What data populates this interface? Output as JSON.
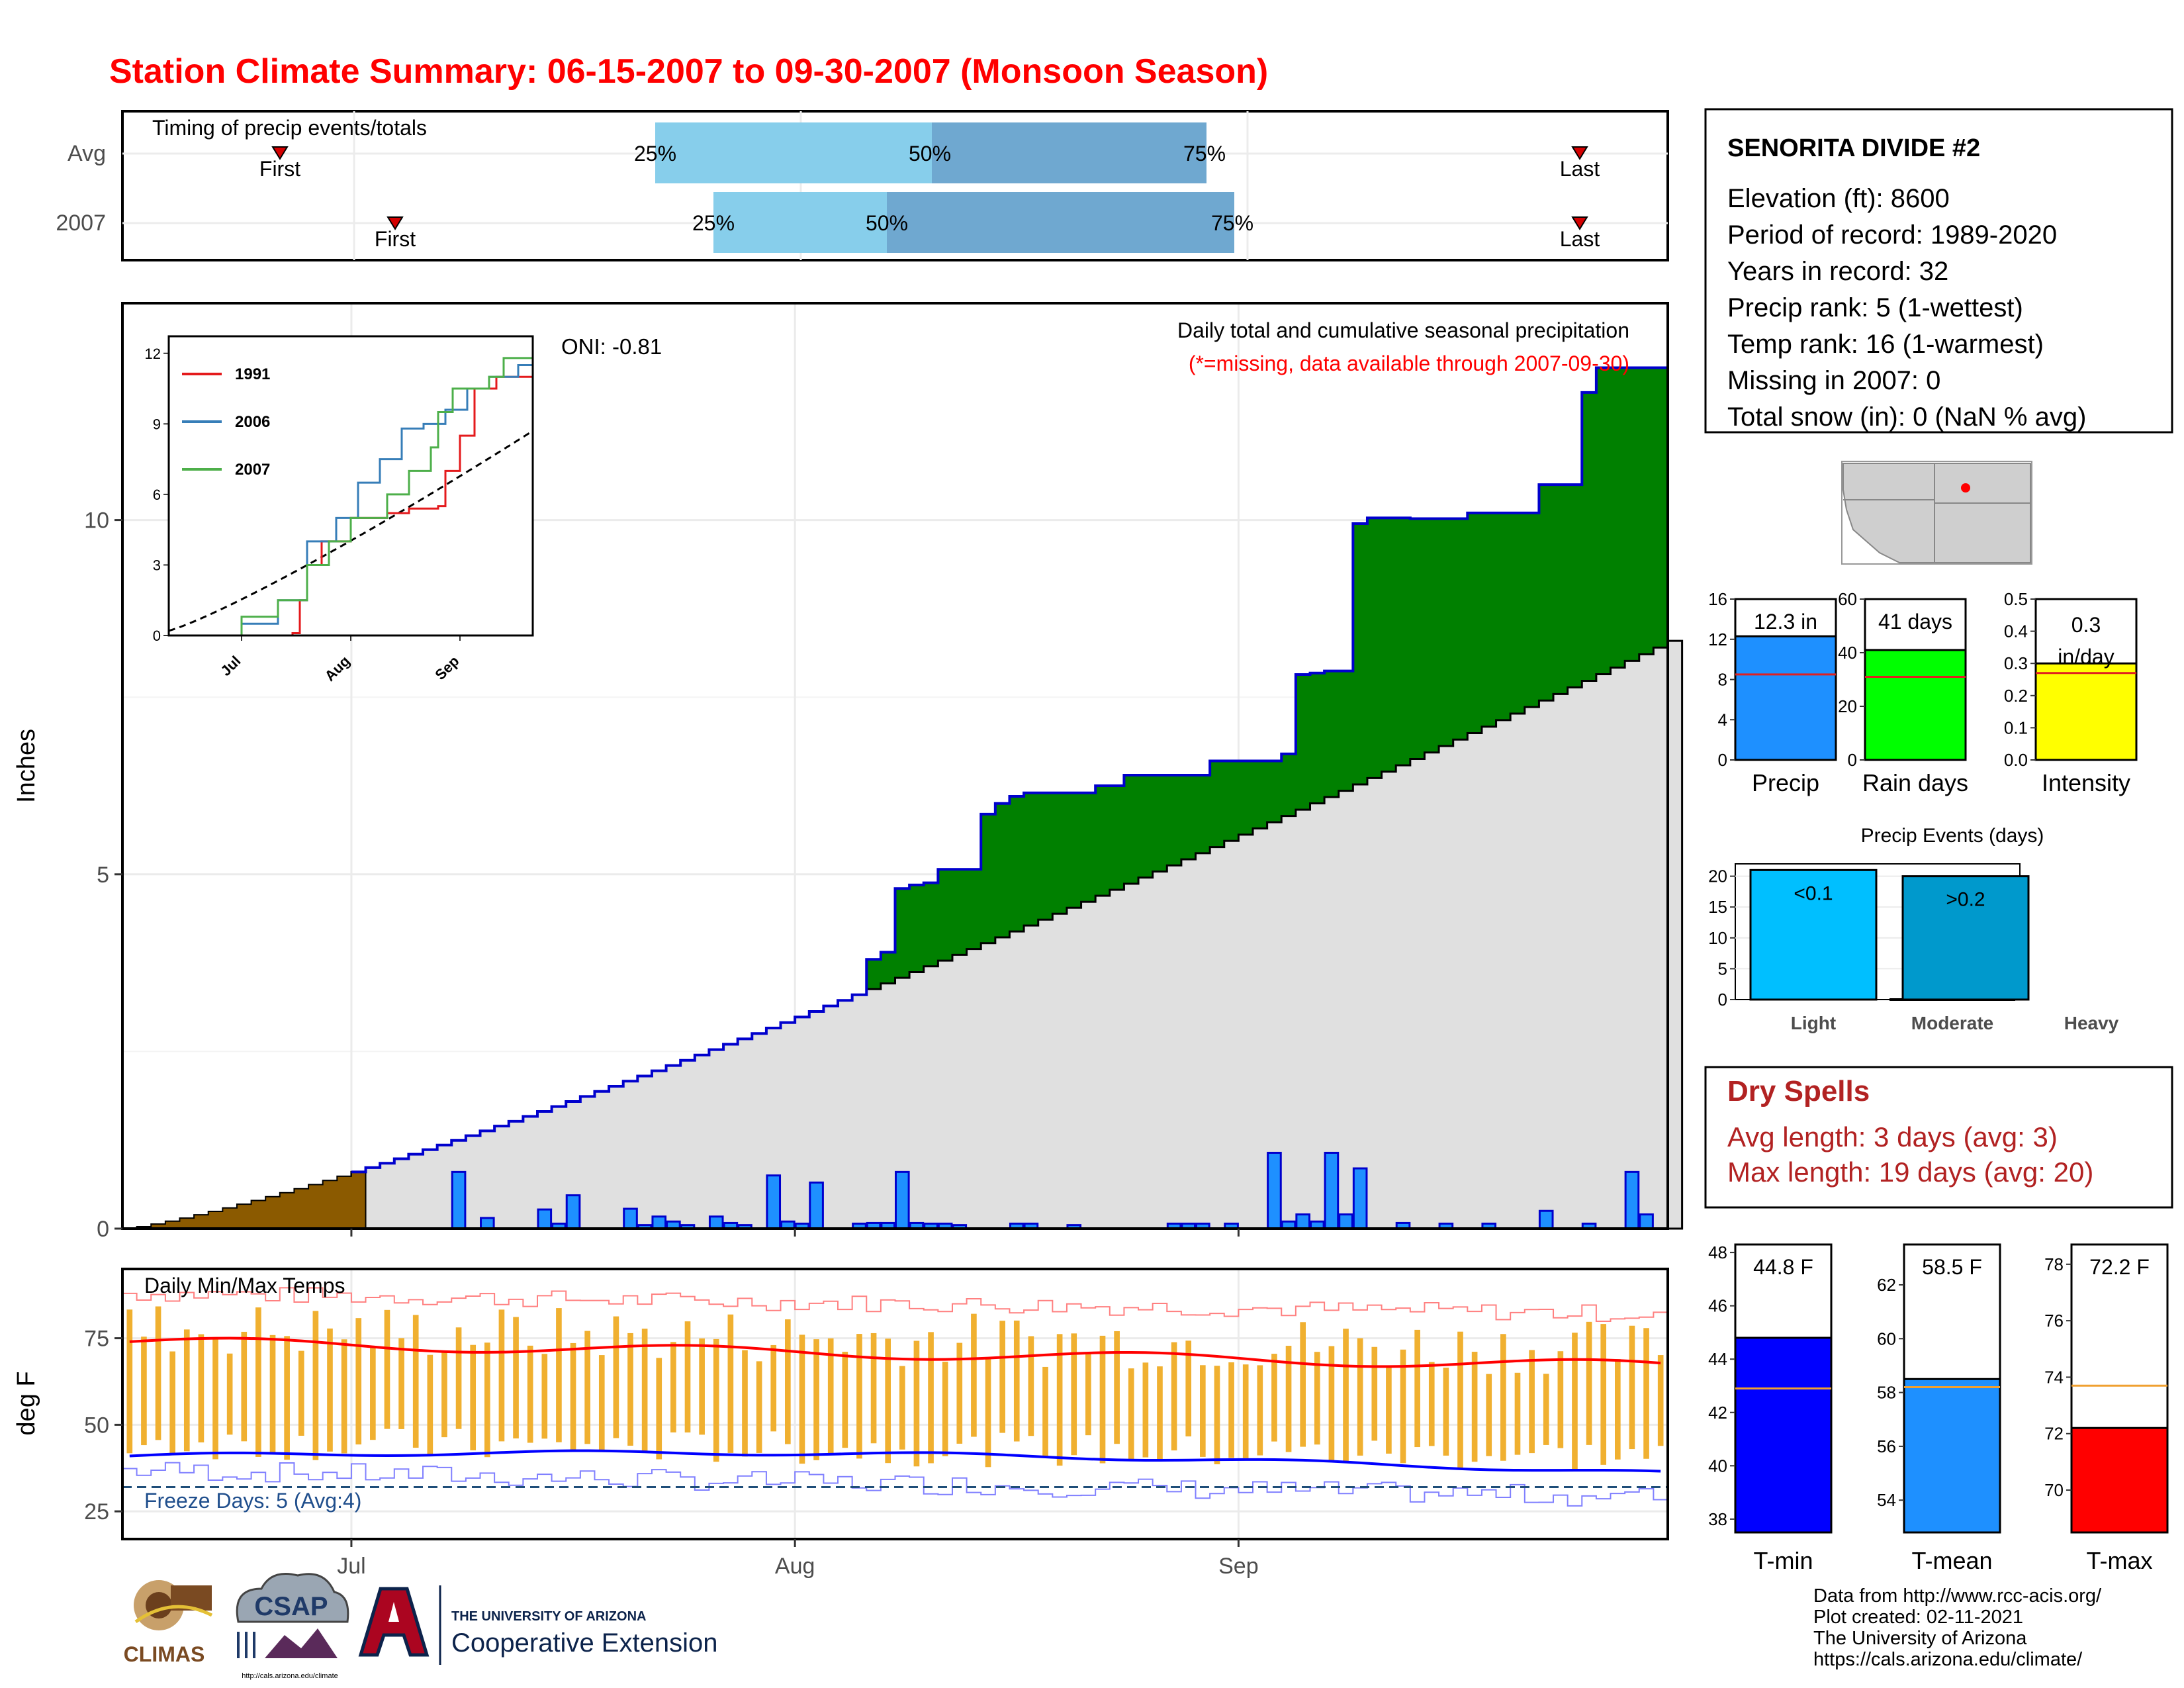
{
  "title": "Station Climate Summary: 06-15-2007 to 09-30-2007 (Monsoon Season)",
  "colors": {
    "title": "#ff0000",
    "green": "#008000",
    "avg_fill": "#e0e0e0",
    "brown": "#8b5a00",
    "bar": "#1e90ff",
    "bar_edge": "#0000cd",
    "tmax": "#ff0000",
    "tmin": "#0000ff",
    "range": "#f0b030",
    "light_blue": "#87ceeb",
    "mid_blue": "#6fa8d0",
    "dry_red": "#b22222"
  },
  "timing": {
    "label": "Timing of precip events/totals",
    "rows": [
      {
        "label": "Avg",
        "first": "First",
        "last": "Last",
        "p25": "25%",
        "p50": "50%",
        "p75": "75%"
      },
      {
        "label": "2007",
        "first": "First",
        "last": "Last",
        "p25": "25%",
        "p50": "50%",
        "p75": "75%"
      }
    ]
  },
  "main": {
    "ylabel": "Inches",
    "title": "Daily total and cumulative seasonal precipitation",
    "note": "(*=missing, data available through 2007-09-30)",
    "oni": "ONI: -0.81",
    "yticks": [
      "0",
      "5",
      "10"
    ],
    "xticks": [
      "Jul",
      "Aug",
      "Sep"
    ]
  },
  "inset": {
    "yticks": [
      "0",
      "3",
      "6",
      "9",
      "12"
    ],
    "xticks": [
      "Jul",
      "Aug",
      "Sep"
    ],
    "legend": [
      {
        "name": "1991",
        "color": "#e41a1c"
      },
      {
        "name": "2006",
        "color": "#377eb8"
      },
      {
        "name": "2007",
        "color": "#4daf4a"
      }
    ]
  },
  "temps": {
    "ylabel": "deg F",
    "label": "Daily Min/Max Temps",
    "freeze": "Freeze Days: 5 (Avg:4)",
    "yticks": [
      "25",
      "50",
      "75"
    ],
    "xticks": [
      "Jul",
      "Aug",
      "Sep"
    ]
  },
  "station": {
    "name": "SENORITA DIVIDE #2",
    "lines": [
      "Elevation (ft): 8600",
      "Period of record: 1989-2020",
      "Years in record: 32",
      "Precip rank: 5 (1-wettest)",
      "Temp rank: 16 (1-warmest)",
      "Missing in 2007: 0",
      "Total snow (in): 0 (NaN % avg)"
    ]
  },
  "summary_bars": [
    {
      "name": "Precip",
      "label": "12.3 in",
      "value": 12.3,
      "avg": 8.5,
      "max": 16,
      "yticks": [
        "0",
        "4",
        "8",
        "12",
        "16"
      ],
      "color": "#1e90ff"
    },
    {
      "name": "Rain days",
      "label": "41 days",
      "value": 41,
      "avg": 31,
      "max": 60,
      "yticks": [
        "0",
        "20",
        "40",
        "60"
      ],
      "color": "#00ff00"
    },
    {
      "name": "Intensity",
      "label": "0.3\nin/day",
      "label1": "0.3",
      "label2": "in/day",
      "value": 0.3,
      "avg": 0.27,
      "max": 0.5,
      "yticks": [
        "0.0",
        "0.1",
        "0.2",
        "0.3",
        "0.4",
        "0.5"
      ],
      "color": "#ffff00"
    }
  ],
  "events": {
    "title": "Precip Events (days)",
    "yticks": [
      "0",
      "5",
      "10",
      "15",
      "20"
    ],
    "bars": [
      {
        "name": "Light",
        "label": "<0.1",
        "value": 21,
        "color": "#00bfff"
      },
      {
        "name": "Moderate",
        "label": "",
        "value": 0,
        "color": "#1e90ff"
      },
      {
        "name": "Heavy",
        "label": ">0.2",
        "value": 20,
        "color": "#0099cc"
      }
    ]
  },
  "dry_spells": {
    "title": "Dry Spells",
    "avg": "Avg length: 3 days (avg: 3)",
    "max": "Max length: 19 days (avg: 20)"
  },
  "temp_bars": [
    {
      "name": "T-min",
      "label": "44.8 F",
      "value": 44.8,
      "avg": 42.9,
      "min": 37.5,
      "max": 48.3,
      "yticks": [
        "38",
        "40",
        "42",
        "44",
        "46",
        "48"
      ],
      "color": "#0000ff"
    },
    {
      "name": "T-mean",
      "label": "58.5 F",
      "value": 58.5,
      "avg": 58.2,
      "min": 52.8,
      "max": 63.5,
      "yticks": [
        "54",
        "56",
        "58",
        "60",
        "62"
      ],
      "color": "#1e90ff"
    },
    {
      "name": "T-max",
      "label": "72.2 F",
      "value": 72.2,
      "avg": 73.7,
      "min": 68.5,
      "max": 78.7,
      "yticks": [
        "70",
        "72",
        "74",
        "76",
        "78"
      ],
      "color": "#ff0000"
    }
  ],
  "credits": [
    "Data from http://www.rcc-acis.org/",
    "Plot created: 02-11-2021",
    "The University of Arizona",
    "https://cals.arizona.edu/climate/"
  ],
  "logos": {
    "climas": "CLIMAS",
    "csap": "CSAP",
    "csap_url": "http://cals.arizona.edu/climate",
    "ua_top": "THE UNIVERSITY OF ARIZONA",
    "ua_bottom": "Cooperative Extension"
  },
  "chart_data": [
    {
      "type": "area",
      "name_ref": "main",
      "x_range": [
        "2007-06-15",
        "2007-09-30"
      ],
      "ylim": [
        0,
        12.5
      ],
      "cumulative_2007_steps": [
        [
          "2007-07-08",
          0.85
        ],
        [
          "2007-07-11",
          1.05
        ],
        [
          "2007-07-16",
          1.2
        ],
        [
          "2007-07-17",
          1.3
        ],
        [
          "2007-07-18",
          1.45
        ],
        [
          "2007-07-20",
          1.92
        ],
        [
          "2007-07-26",
          2.2
        ],
        [
          "2007-07-27",
          2.3
        ],
        [
          "2007-07-28",
          2.4
        ],
        [
          "2007-07-30",
          2.68
        ],
        [
          "2007-08-02",
          2.78
        ],
        [
          "2007-08-05",
          3.1
        ],
        [
          "2007-08-06",
          3.8
        ],
        [
          "2007-08-07",
          3.9
        ],
        [
          "2007-08-08",
          4.8
        ],
        [
          "2007-08-09",
          4.85
        ],
        [
          "2007-08-10",
          4.88
        ],
        [
          "2007-08-11",
          5.07
        ],
        [
          "2007-08-14",
          5.85
        ],
        [
          "2007-08-15",
          6.0
        ],
        [
          "2007-08-16",
          6.1
        ],
        [
          "2007-08-17",
          6.15
        ],
        [
          "2007-08-18",
          6.15
        ],
        [
          "2007-08-22",
          6.25
        ],
        [
          "2007-08-24",
          6.4
        ],
        [
          "2007-08-30",
          6.6
        ],
        [
          "2007-09-04",
          6.7
        ],
        [
          "2007-09-05",
          7.82
        ],
        [
          "2007-09-06",
          7.84
        ],
        [
          "2007-09-07",
          7.87
        ],
        [
          "2007-09-09",
          9.95
        ],
        [
          "2007-09-10",
          10.03
        ],
        [
          "2007-09-13",
          10.02
        ],
        [
          "2007-09-17",
          10.1
        ],
        [
          "2007-09-22",
          10.5
        ],
        [
          "2007-09-25",
          11.8
        ],
        [
          "2007-09-26",
          12.15
        ],
        [
          "2007-09-30",
          12.15
        ]
      ],
      "avg_cumulative_end": 8.2,
      "daily_bars": [
        [
          "2007-07-08",
          0.8
        ],
        [
          "2007-07-10",
          0.15
        ],
        [
          "2007-07-14",
          0.27
        ],
        [
          "2007-07-15",
          0.07
        ],
        [
          "2007-07-16",
          0.47
        ],
        [
          "2007-07-20",
          0.28
        ],
        [
          "2007-07-21",
          0.05
        ],
        [
          "2007-07-22",
          0.17
        ],
        [
          "2007-07-23",
          0.1
        ],
        [
          "2007-07-24",
          0.05
        ],
        [
          "2007-07-26",
          0.17
        ],
        [
          "2007-07-27",
          0.08
        ],
        [
          "2007-07-28",
          0.05
        ],
        [
          "2007-07-30",
          0.75
        ],
        [
          "2007-07-31",
          0.1
        ],
        [
          "2007-08-01",
          0.07
        ],
        [
          "2007-08-02",
          0.65
        ],
        [
          "2007-08-05",
          0.07
        ],
        [
          "2007-08-06",
          0.08
        ],
        [
          "2007-08-07",
          0.08
        ],
        [
          "2007-08-08",
          0.8
        ],
        [
          "2007-08-09",
          0.08
        ],
        [
          "2007-08-10",
          0.07
        ],
        [
          "2007-08-11",
          0.07
        ],
        [
          "2007-08-12",
          0.05
        ],
        [
          "2007-08-16",
          0.07
        ],
        [
          "2007-08-17",
          0.07
        ],
        [
          "2007-08-20",
          0.05
        ],
        [
          "2007-08-27",
          0.07
        ],
        [
          "2007-08-28",
          0.07
        ],
        [
          "2007-08-29",
          0.07
        ],
        [
          "2007-08-31",
          0.07
        ],
        [
          "2007-09-03",
          1.07
        ],
        [
          "2007-09-04",
          0.1
        ],
        [
          "2007-09-05",
          0.2
        ],
        [
          "2007-09-06",
          0.1
        ],
        [
          "2007-09-07",
          1.07
        ],
        [
          "2007-09-08",
          0.2
        ],
        [
          "2007-09-09",
          0.85
        ],
        [
          "2007-09-12",
          0.08
        ],
        [
          "2007-09-15",
          0.07
        ],
        [
          "2007-09-18",
          0.07
        ],
        [
          "2007-09-22",
          0.25
        ],
        [
          "2007-09-25",
          0.07
        ],
        [
          "2007-09-28",
          0.8
        ],
        [
          "2007-09-29",
          0.2
        ]
      ]
    },
    {
      "type": "line",
      "name_ref": "temps",
      "ylim": [
        17,
        95
      ],
      "freeze_line": 32,
      "tmax_avg_start": 74,
      "tmax_avg_end": 67,
      "tmin_avg_start": 41,
      "tmin_avg_end": 36
    }
  ]
}
